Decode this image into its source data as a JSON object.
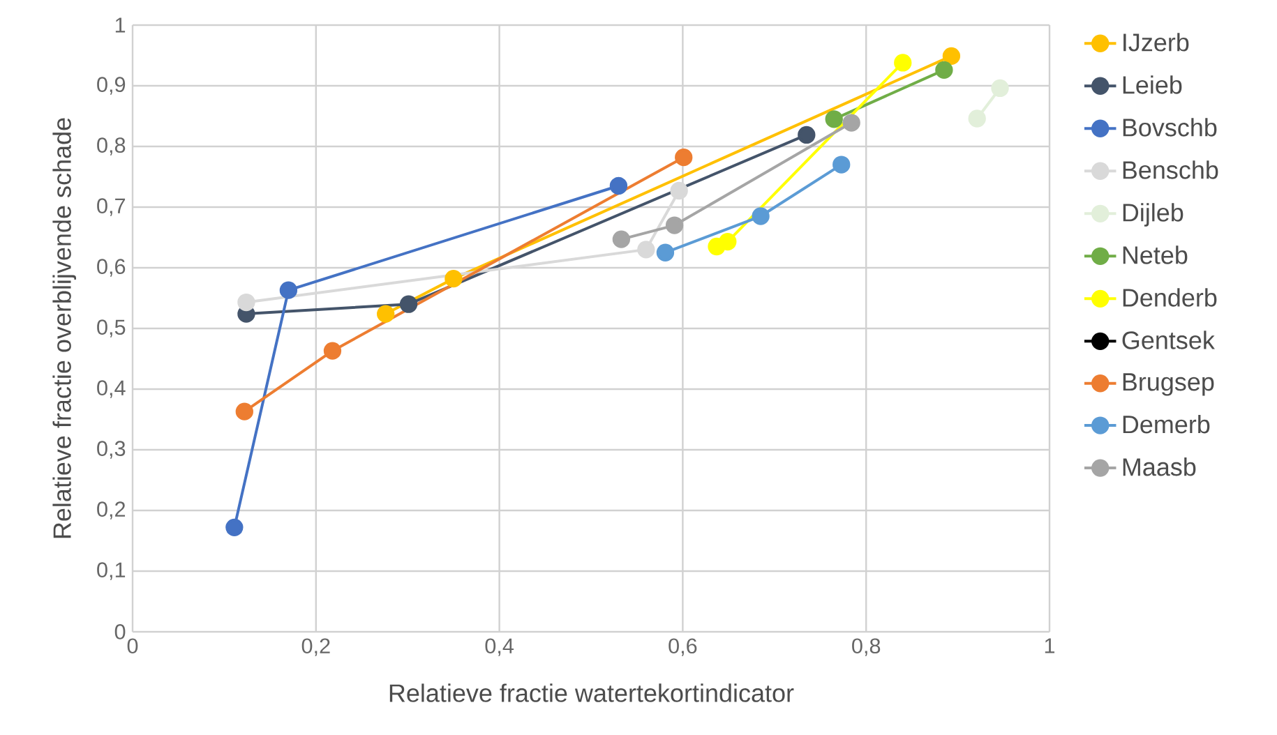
{
  "chart_data": {
    "type": "line",
    "xlabel": "Relatieve fractie watertekortindicator",
    "ylabel": "Relatieve fractie overblijvende schade",
    "xlim": [
      0,
      1
    ],
    "ylim": [
      0,
      1
    ],
    "xticks": [
      0,
      {
        "value": 0.2,
        "label": "0,2"
      },
      {
        "value": 0.4,
        "label": "0,4"
      },
      {
        "value": 0.6,
        "label": "0,6"
      },
      {
        "value": 0.8,
        "label": "0,8"
      },
      1
    ],
    "yticks": [
      0,
      {
        "value": 0.1,
        "label": "0,1"
      },
      {
        "value": 0.2,
        "label": "0,2"
      },
      {
        "value": 0.3,
        "label": "0,3"
      },
      {
        "value": 0.4,
        "label": "0,4"
      },
      {
        "value": 0.5,
        "label": "0,5"
      },
      {
        "value": 0.6,
        "label": "0,6"
      },
      {
        "value": 0.7,
        "label": "0,7"
      },
      {
        "value": 0.8,
        "label": "0,8"
      },
      {
        "value": 0.9,
        "label": "0,9"
      },
      1
    ],
    "grid": true,
    "legend": "right",
    "marker": "circle",
    "line_style": "solid",
    "series": [
      {
        "name": "IJzerb",
        "color": "#ffc000",
        "x": [
          0.276,
          0.35,
          0.893
        ],
        "values": [
          0.524,
          0.582,
          0.949
        ]
      },
      {
        "name": "Leieb",
        "color": "#44546a",
        "x": [
          0.124,
          0.301,
          0.735
        ],
        "values": [
          0.524,
          0.54,
          0.819
        ]
      },
      {
        "name": "Bovschb",
        "color": "#4472c4",
        "x": [
          0.111,
          0.17,
          0.53
        ],
        "values": [
          0.172,
          0.563,
          0.735
        ]
      },
      {
        "name": "Benschb",
        "color": "#d9d9d9",
        "x": [
          0.124,
          0.56,
          0.596
        ],
        "values": [
          0.543,
          0.63,
          0.727
        ]
      },
      {
        "name": "Dijleb",
        "color": "#e2efda",
        "x": [
          0.921,
          0.946
        ],
        "values": [
          0.846,
          0.896
        ]
      },
      {
        "name": "Neteb",
        "color": "#70ad47",
        "x": [
          0.765,
          0.885
        ],
        "values": [
          0.845,
          0.926
        ]
      },
      {
        "name": "Denderb",
        "color": "#ffff00",
        "x": [
          0.637,
          0.649,
          0.84
        ],
        "values": [
          0.635,
          0.643,
          0.938
        ]
      },
      {
        "name": "Gentsek",
        "color": "#000000"
      },
      {
        "name": "Brugsep",
        "color": "#ed7d31",
        "x": [
          0.122,
          0.218,
          0.601
        ],
        "values": [
          0.363,
          0.463,
          0.782
        ]
      },
      {
        "name": "Demerb",
        "color": "#5b9bd5",
        "x": [
          0.581,
          0.685,
          0.773
        ],
        "values": [
          0.625,
          0.685,
          0.77
        ]
      },
      {
        "name": "Maasb",
        "color": "#a5a5a5",
        "x": [
          0.533,
          0.591,
          0.784
        ],
        "values": [
          0.647,
          0.67,
          0.839
        ]
      }
    ]
  }
}
